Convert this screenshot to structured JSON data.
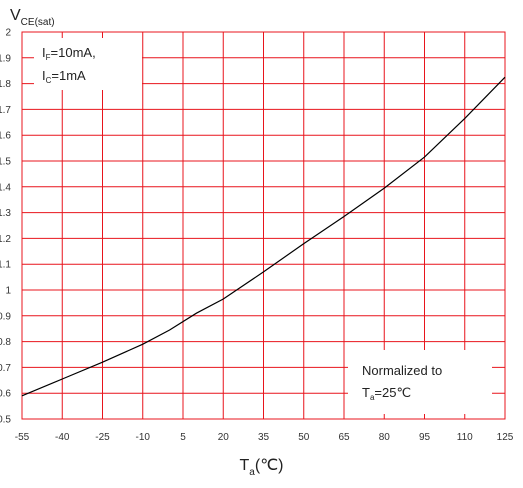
{
  "chart_data": {
    "type": "line",
    "title": "",
    "ylabel": {
      "main": "V",
      "sub": "CE(sat)"
    },
    "xlabel": {
      "main": "T",
      "sub": "a",
      "unit": "(℃)"
    },
    "xlim": [
      -55,
      125
    ],
    "ylim": [
      0.5,
      2
    ],
    "x_ticks": [
      "-55",
      "-40",
      "-25",
      "-10",
      "5",
      "20",
      "35",
      "50",
      "65",
      "80",
      "95",
      "110",
      "125"
    ],
    "y_ticks": [
      "0.5",
      "0.6",
      "0.7",
      "0.8",
      "0.9",
      "1",
      "1.1",
      "1.2",
      "1.3",
      "1.4",
      "1.5",
      "1.6",
      "1.7",
      "1.8",
      "1.9",
      "2"
    ],
    "grid": true,
    "grid_color": "#e8141c",
    "line_color": "#000000",
    "series": [
      {
        "x": [
          -55,
          -40,
          -25,
          -10,
          0,
          10,
          20,
          35,
          50,
          65,
          80,
          95,
          110,
          125
        ],
        "y": [
          0.59,
          0.655,
          0.72,
          0.79,
          0.845,
          0.91,
          0.965,
          1.07,
          1.18,
          1.285,
          1.395,
          1.515,
          1.665,
          1.825
        ]
      }
    ],
    "annotations": {
      "conditions": {
        "line1": {
          "main": "I",
          "sub": "F",
          "rest": "=10mA,"
        },
        "line2": {
          "main": "I",
          "sub": "C",
          "rest": "=1mA"
        }
      },
      "normalization": {
        "line1": "Normalized to",
        "line2": {
          "main": "T",
          "sub": "a",
          "rest": "=25℃"
        }
      }
    }
  }
}
